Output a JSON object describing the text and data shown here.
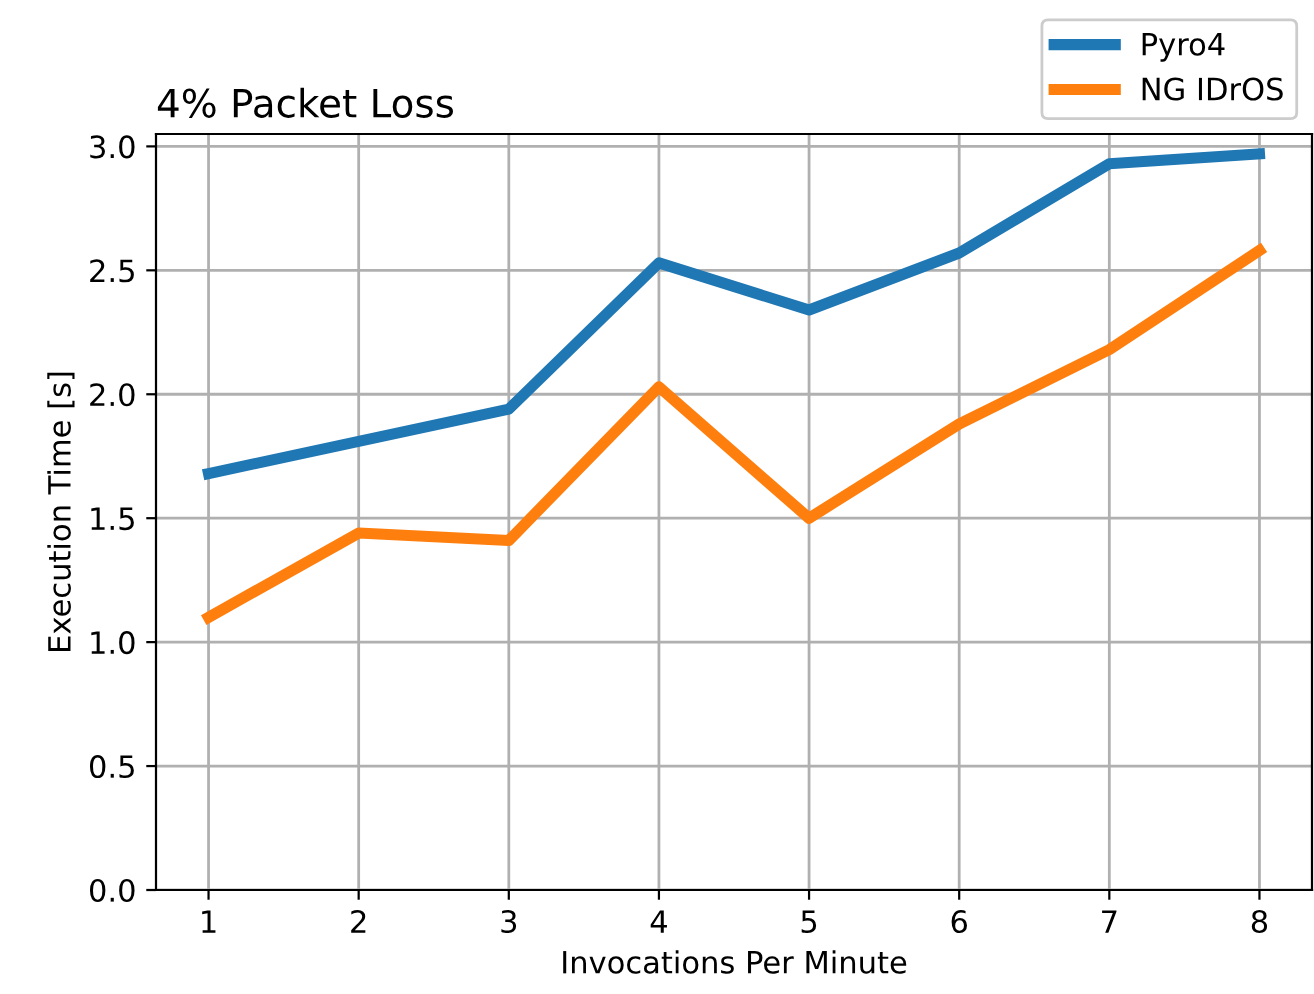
{
  "chart_data": {
    "type": "line",
    "title": "4% Packet Loss",
    "xlabel": "Invocations Per Minute",
    "ylabel": "Execution Time [s]",
    "x": [
      1,
      2,
      3,
      4,
      5,
      6,
      7,
      8
    ],
    "series": [
      {
        "name": "Pyro4",
        "color": "#1f77b4",
        "values": [
          1.68,
          1.81,
          1.94,
          2.53,
          2.34,
          2.57,
          2.93,
          2.97
        ]
      },
      {
        "name": "NG IDrOS",
        "color": "#ff7f0e",
        "values": [
          1.1,
          1.44,
          1.41,
          2.03,
          1.5,
          1.88,
          2.18,
          2.58
        ]
      }
    ],
    "xlim": [
      0.65,
      8.35
    ],
    "xticks": [
      1,
      2,
      3,
      4,
      5,
      6,
      7,
      8
    ],
    "ylim": [
      0,
      3.05
    ],
    "yticks": [
      {
        "value": 0,
        "label": "0.0"
      },
      0.5,
      {
        "value": 1,
        "label": "1.0"
      },
      1.5,
      {
        "value": 2,
        "label": "2.0"
      },
      2.5,
      {
        "value": 3,
        "label": "3.0"
      }
    ],
    "grid": true,
    "legend": "top right",
    "marker": "none",
    "line_style": "solid"
  }
}
